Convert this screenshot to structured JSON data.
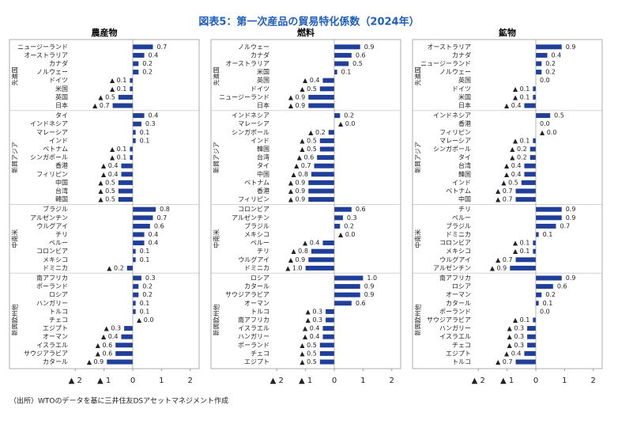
{
  "title": "図表5：第一次産品の貿易特化係数（2024年）",
  "source": "（出所）WTOのデータを基に三井住友DSアセットマネジメント作成",
  "chart_data": [
    {
      "type": "bar",
      "orientation": "horizontal",
      "title": "農産物",
      "color": "#1f3f99",
      "xlim": [
        -2.2,
        2.2
      ],
      "xticks": [
        {
          "value": -2,
          "label": "▲ 2"
        },
        {
          "value": -1,
          "label": "▲ 1"
        },
        0,
        1,
        2
      ],
      "groups": [
        {
          "name": "先進国",
          "categories": [
            "ニュージーランド",
            "オーストラリア",
            "カナダ",
            "ノルウェー",
            "ドイツ",
            "米国",
            "英国",
            "日本"
          ],
          "values": [
            0.7,
            0.4,
            0.2,
            0.2,
            -0.1,
            -0.1,
            -0.5,
            -0.7
          ],
          "value_labels": [
            "0.7",
            "0.4",
            "0.2",
            "0.2",
            "▲ 0.1",
            "▲ 0.1",
            "▲ 0.5",
            "▲ 0.7"
          ]
        },
        {
          "name": "新興アジア",
          "categories": [
            "タイ",
            "インドネシア",
            "マレーシア",
            "インド",
            "ベトナム",
            "シンガポール",
            "香港",
            "フィリピン",
            "中国",
            "台湾",
            "韓国"
          ],
          "values": [
            0.4,
            0.3,
            0.1,
            0.1,
            -0.1,
            -0.1,
            -0.4,
            -0.4,
            -0.5,
            -0.5,
            -0.5
          ],
          "value_labels": [
            "0.4",
            "0.3",
            "0.1",
            "0.1",
            "▲ 0.1",
            "▲ 0.1",
            "▲ 0.4",
            "▲ 0.4",
            "▲ 0.5",
            "▲ 0.5",
            "▲ 0.5"
          ]
        },
        {
          "name": "中南米",
          "categories": [
            "ブラジル",
            "アルゼンチン",
            "ウルグアイ",
            "チリ",
            "ペルー",
            "コロンビア",
            "メキシコ",
            "ドミニカ"
          ],
          "values": [
            0.8,
            0.7,
            0.6,
            0.4,
            0.4,
            0.1,
            0.1,
            -0.2
          ],
          "value_labels": [
            "0.8",
            "0.7",
            "0.6",
            "0.4",
            "0.4",
            "0.1",
            "0.1",
            "▲ 0.2"
          ]
        },
        {
          "name": "新興欧州他",
          "categories": [
            "南アフリカ",
            "ポーランド",
            "ロシア",
            "ハンガリー",
            "トルコ",
            "チェコ",
            "エジプト",
            "オーマン",
            "イスラエル",
            "サウジアラビア",
            "カタール"
          ],
          "values": [
            0.3,
            0.2,
            0.2,
            0.1,
            0.1,
            0,
            -0.3,
            -0.4,
            -0.6,
            -0.6,
            -0.9
          ],
          "value_labels": [
            "0.3",
            "0.2",
            "0.2",
            "0.1",
            "0.1",
            "▲ 0.0",
            "▲ 0.3",
            "▲ 0.4",
            "▲ 0.6",
            "▲ 0.6",
            "▲ 0.9"
          ]
        }
      ]
    },
    {
      "type": "bar",
      "orientation": "horizontal",
      "title": "燃料",
      "color": "#1f3f99",
      "xlim": [
        -2.2,
        2.2
      ],
      "xticks": [
        {
          "value": -2,
          "label": "▲ 2"
        },
        {
          "value": -1,
          "label": "▲ 1"
        },
        0,
        1,
        2
      ],
      "groups": [
        {
          "name": "先進国",
          "categories": [
            "ノルウェー",
            "カナダ",
            "オーストラリア",
            "米国",
            "英国",
            "ドイツ",
            "ニュージーランド",
            "日本"
          ],
          "values": [
            0.9,
            0.6,
            0.5,
            0.1,
            -0.4,
            -0.5,
            -0.9,
            -0.9
          ],
          "value_labels": [
            "0.9",
            "0.6",
            "0.5",
            "0.1",
            "▲ 0.4",
            "▲ 0.5",
            "▲ 0.9",
            "▲ 0.9"
          ]
        },
        {
          "name": "新興アジア",
          "categories": [
            "インドネシア",
            "マレーシア",
            "シンガポール",
            "インド",
            "韓国",
            "台湾",
            "タイ",
            "中国",
            "ベトナム",
            "香港",
            "フィリピン"
          ],
          "values": [
            0.2,
            0,
            -0.2,
            -0.5,
            -0.5,
            -0.6,
            -0.7,
            -0.8,
            -0.9,
            -0.9,
            -0.9
          ],
          "value_labels": [
            "0.2",
            "▲ 0.0",
            "▲ 0.2",
            "▲ 0.5",
            "▲ 0.5",
            "▲ 0.6",
            "▲ 0.7",
            "▲ 0.8",
            "▲ 0.9",
            "▲ 0.9",
            "▲ 0.9"
          ]
        },
        {
          "name": "中南米",
          "categories": [
            "コロンビア",
            "アルゼンチン",
            "ブラジル",
            "メキシコ",
            "ペルー",
            "チリ",
            "ウルグアイ",
            "ドミニカ"
          ],
          "values": [
            0.6,
            0.3,
            0.2,
            0,
            -0.4,
            -0.8,
            -0.9,
            -1.0
          ],
          "value_labels": [
            "0.6",
            "0.3",
            "0.2",
            "▲ 0.0",
            "▲ 0.4",
            "▲ 0.8",
            "▲ 0.9",
            "▲ 1.0"
          ]
        },
        {
          "name": "新興欧州他",
          "categories": [
            "ロシア",
            "カタール",
            "サウジアラビア",
            "オーマン",
            "トルコ",
            "南アフリカ",
            "イスラエル",
            "ハンガリー",
            "ポーランド",
            "チェコ",
            "エジプト"
          ],
          "values": [
            1.0,
            0.9,
            0.9,
            0.6,
            -0.3,
            -0.3,
            -0.4,
            -0.4,
            -0.5,
            -0.5,
            -0.5
          ],
          "value_labels": [
            "1.0",
            "0.9",
            "0.9",
            "0.6",
            "▲ 0.3",
            "▲ 0.3",
            "▲ 0.4",
            "▲ 0.4",
            "▲ 0.5",
            "▲ 0.5",
            "▲ 0.5"
          ]
        }
      ]
    },
    {
      "type": "bar",
      "orientation": "horizontal",
      "title": "鉱物",
      "color": "#1f3f99",
      "xlim": [
        -2.2,
        2.2
      ],
      "xticks": [
        {
          "value": -2,
          "label": "▲ 2"
        },
        {
          "value": -1,
          "label": "▲ 1"
        },
        0,
        1,
        2
      ],
      "groups": [
        {
          "name": "先進国",
          "categories": [
            "オーストラリア",
            "カナダ",
            "ニュージーランド",
            "ノルウェー",
            "英国",
            "ドイツ",
            "米国",
            "日本"
          ],
          "values": [
            0.9,
            0.4,
            0.2,
            0.2,
            0,
            -0.1,
            -0.1,
            -0.4
          ],
          "value_labels": [
            "0.9",
            "0.4",
            "0.2",
            "0.2",
            "0.0",
            "▲ 0.1",
            "▲ 0.1",
            "▲ 0.4"
          ]
        },
        {
          "name": "新興アジア",
          "categories": [
            "インドネシア",
            "香港",
            "フィリピン",
            "マレーシア",
            "シンガポール",
            "タイ",
            "台湾",
            "韓国",
            "インド",
            "ベトナム",
            "中国"
          ],
          "values": [
            0.5,
            0,
            0,
            -0.1,
            -0.2,
            -0.2,
            -0.4,
            -0.4,
            -0.5,
            -0.7,
            -0.7
          ],
          "value_labels": [
            "0.5",
            "0.0",
            "▲ 0.0",
            "▲ 0.1",
            "▲ 0.2",
            "▲ 0.2",
            "▲ 0.4",
            "▲ 0.4",
            "▲ 0.5",
            "▲ 0.7",
            "▲ 0.7"
          ]
        },
        {
          "name": "中南米",
          "categories": [
            "チリ",
            "ペルー",
            "ブラジル",
            "ドミニカ",
            "コロンビア",
            "メキシコ",
            "ウルグアイ",
            "アルゼンチン"
          ],
          "values": [
            0.9,
            0.9,
            0.7,
            0.1,
            -0.1,
            -0.1,
            -0.7,
            -0.9
          ],
          "value_labels": [
            "0.9",
            "0.9",
            "0.7",
            "0.1",
            "▲ 0.1",
            "▲ 0.1",
            "▲ 0.7",
            "▲ 0.9"
          ]
        },
        {
          "name": "新興欧州他",
          "categories": [
            "南アフリカ",
            "ロシア",
            "オーマン",
            "カタール",
            "ポーランド",
            "サウジアラビア",
            "ハンガリー",
            "イスラエル",
            "チェコ",
            "エジプト",
            "トルコ"
          ],
          "values": [
            0.9,
            0.6,
            0.2,
            0.1,
            0,
            -0.1,
            -0.3,
            -0.3,
            -0.3,
            -0.4,
            -0.7
          ],
          "value_labels": [
            "0.9",
            "0.6",
            "0.2",
            "0.1",
            "0.0",
            "▲ 0.1",
            "▲ 0.3",
            "▲ 0.3",
            "▲ 0.3",
            "▲ 0.4",
            "▲ 0.7"
          ]
        }
      ]
    }
  ]
}
